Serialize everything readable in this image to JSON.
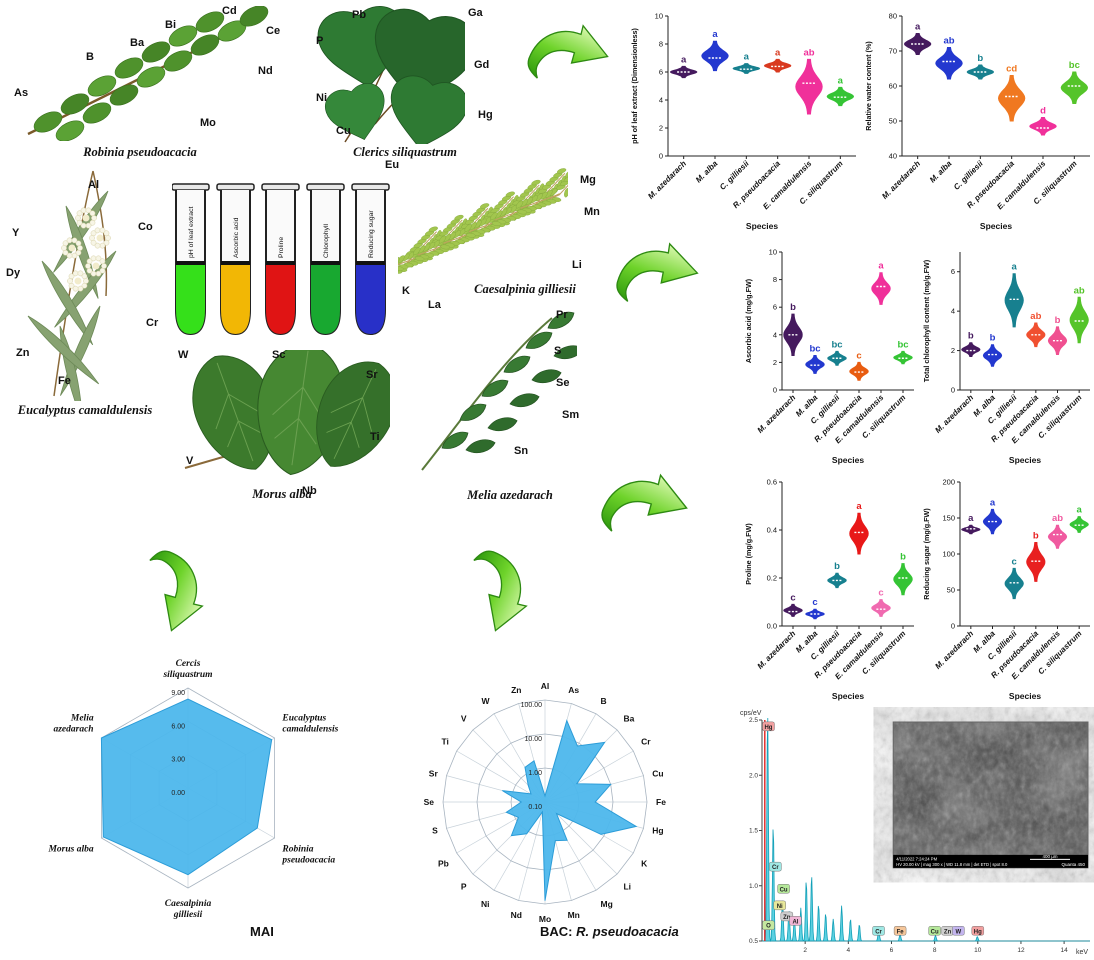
{
  "panels": {
    "robinia": {
      "caption": "Robinia pseudoacacia",
      "elements": [
        "As",
        "B",
        "Ba",
        "Bi",
        "Cd",
        "Ce",
        "Nd",
        "Mo"
      ]
    },
    "cercis": {
      "caption": "Clerics siliquastrum",
      "elements": [
        "P",
        "Pb",
        "Ga",
        "Gd",
        "Ni",
        "Cu",
        "Hg",
        "Eu"
      ]
    },
    "eucalyptus": {
      "caption": "Eucalyptus camaldulensis",
      "elements": [
        "Al",
        "Y",
        "Co",
        "Dy",
        "Cr",
        "Zn",
        "Fe"
      ]
    },
    "caesalpinia": {
      "caption": "Caesalpinia gilliesii",
      "elements": [
        "Mg",
        "Mn",
        "Li",
        "K",
        "La"
      ]
    },
    "morus": {
      "caption": "Morus alba",
      "elements": [
        "W",
        "Sc",
        "Sr",
        "Ti",
        "V",
        "Nb"
      ]
    },
    "melia": {
      "caption": "Melia azedarach",
      "elements": [
        "Pr",
        "S",
        "Se",
        "Sm",
        "Sn"
      ]
    },
    "tubes": {
      "labels": [
        "pH of leaf extract",
        "Ascorbic acid",
        "Proline",
        "Chlorophyll",
        "Reducing sugar"
      ],
      "colors": [
        "#35e01a",
        "#f2b705",
        "#e01414",
        "#18a830",
        "#2830c8"
      ]
    }
  },
  "chart_data": [
    {
      "type": "violin",
      "ylabel": "pH of leaf extract (Dimensionless)",
      "xlabel": "Species",
      "ylim": [
        0,
        10
      ],
      "yticks": [
        0,
        2,
        4,
        6,
        8,
        10
      ],
      "ydec": 0,
      "categories": [
        "M. azedarach",
        "M. alba",
        "C. gilliesii",
        "R. pseudoacacia",
        "E. camaldulensis",
        "C. siliquastrum"
      ],
      "series": [
        {
          "name": "M. azedarach",
          "min": 5.6,
          "median": 6.0,
          "max": 6.4,
          "letter": "a",
          "color": "#451a5e"
        },
        {
          "name": "M. alba",
          "min": 6.1,
          "median": 7.0,
          "max": 8.2,
          "letter": "a",
          "color": "#2338cf"
        },
        {
          "name": "C. gilliesii",
          "min": 5.9,
          "median": 6.2,
          "max": 6.6,
          "letter": "a",
          "color": "#17808f"
        },
        {
          "name": "R. pseudoacacia",
          "min": 6.0,
          "median": 6.4,
          "max": 6.9,
          "letter": "a",
          "color": "#d93a20"
        },
        {
          "name": "E. camaldulensis",
          "min": 3.0,
          "median": 5.2,
          "max": 6.9,
          "letter": "ab",
          "color": "#f0309a"
        },
        {
          "name": "C. siliquastrum",
          "min": 3.6,
          "median": 4.2,
          "max": 4.9,
          "letter": "a",
          "color": "#35c435"
        }
      ]
    },
    {
      "type": "violin",
      "ylabel": "Relative water content (%)",
      "xlabel": "Species",
      "ylim": [
        40,
        80
      ],
      "yticks": [
        40,
        50,
        60,
        70,
        80
      ],
      "ydec": 0,
      "categories": [
        "M. azedarach",
        "M. alba",
        "C. gilliesii",
        "R. pseudoacacia",
        "E. camaldulensis",
        "C. siliquastrum"
      ],
      "series": [
        {
          "name": "M. azedarach",
          "min": 69,
          "median": 72,
          "max": 75,
          "letter": "a",
          "color": "#451a5e"
        },
        {
          "name": "M. alba",
          "min": 62,
          "median": 67,
          "max": 71,
          "letter": "ab",
          "color": "#2338cf"
        },
        {
          "name": "C. gilliesii",
          "min": 62,
          "median": 64,
          "max": 66,
          "letter": "b",
          "color": "#17808f"
        },
        {
          "name": "R. pseudoacacia",
          "min": 50,
          "median": 57,
          "max": 63,
          "letter": "cd",
          "color": "#f07820"
        },
        {
          "name": "E. camaldulensis",
          "min": 46,
          "median": 48,
          "max": 51,
          "letter": "d",
          "color": "#f0309a"
        },
        {
          "name": "C. siliquastrum",
          "min": 55,
          "median": 60,
          "max": 64,
          "letter": "bc",
          "color": "#55c42a"
        }
      ]
    },
    {
      "type": "violin",
      "ylabel": "Ascorbic acid (mg/g.FW)",
      "xlabel": "Species",
      "ylim": [
        0,
        10
      ],
      "yticks": [
        0,
        2,
        4,
        6,
        8,
        10
      ],
      "ydec": 0,
      "categories": [
        "M. azedarach",
        "M. alba",
        "C. gilliesii",
        "R. pseudoacacia",
        "E. camaldulensis",
        "C. siliquastrum"
      ],
      "series": [
        {
          "name": "M. azedarach",
          "min": 2.5,
          "median": 4.0,
          "max": 5.5,
          "letter": "b",
          "color": "#451a5e"
        },
        {
          "name": "M. alba",
          "min": 1.2,
          "median": 1.8,
          "max": 2.5,
          "letter": "bc",
          "color": "#2338cf"
        },
        {
          "name": "C. gilliesii",
          "min": 1.8,
          "median": 2.3,
          "max": 2.8,
          "letter": "bc",
          "color": "#17808f"
        },
        {
          "name": "R. pseudoacacia",
          "min": 0.7,
          "median": 1.3,
          "max": 2.0,
          "letter": "c",
          "color": "#e85c10"
        },
        {
          "name": "E. camaldulensis",
          "min": 6.2,
          "median": 7.5,
          "max": 8.5,
          "letter": "a",
          "color": "#f0309a"
        },
        {
          "name": "C. siliquastrum",
          "min": 1.9,
          "median": 2.3,
          "max": 2.8,
          "letter": "bc",
          "color": "#35c435"
        }
      ]
    },
    {
      "type": "violin",
      "ylabel": "Total chlorophyll content (mg/g.FW)",
      "xlabel": "Species",
      "ylim": [
        0,
        7
      ],
      "yticks": [
        0,
        2,
        4,
        6
      ],
      "ydec": 0,
      "categories": [
        "M. azedarach",
        "M. alba",
        "C. gilliesii",
        "R. pseudoacacia",
        "E. camaldulensis",
        "C. siliquastrum"
      ],
      "series": [
        {
          "name": "M. azedarach",
          "min": 1.7,
          "median": 2.0,
          "max": 2.4,
          "letter": "b",
          "color": "#451a5e"
        },
        {
          "name": "M. alba",
          "min": 1.2,
          "median": 1.8,
          "max": 2.3,
          "letter": "b",
          "color": "#2338cf"
        },
        {
          "name": "C. gilliesii",
          "min": 3.2,
          "median": 4.6,
          "max": 5.9,
          "letter": "a",
          "color": "#17808f"
        },
        {
          "name": "R. pseudoacacia",
          "min": 2.2,
          "median": 2.8,
          "max": 3.4,
          "letter": "ab",
          "color": "#f05030"
        },
        {
          "name": "E. camaldulensis",
          "min": 1.8,
          "median": 2.5,
          "max": 3.2,
          "letter": "b",
          "color": "#f05090"
        },
        {
          "name": "C. siliquastrum",
          "min": 2.4,
          "median": 3.5,
          "max": 4.7,
          "letter": "ab",
          "color": "#55c42a"
        }
      ]
    },
    {
      "type": "violin",
      "ylabel": "Proline (mg/g.FW)",
      "xlabel": "Species",
      "ylim": [
        0,
        0.6
      ],
      "yticks": [
        0,
        0.2,
        0.4,
        0.6
      ],
      "ydec": 1,
      "categories": [
        "M. azedarach",
        "M. alba",
        "C. gilliesii",
        "R. pseudoacacia",
        "E. camaldulensis",
        "C. siliquastrum"
      ],
      "series": [
        {
          "name": "M. azedarach",
          "min": 0.04,
          "median": 0.06,
          "max": 0.09,
          "letter": "c",
          "color": "#451a5e"
        },
        {
          "name": "M. alba",
          "min": 0.03,
          "median": 0.05,
          "max": 0.07,
          "letter": "c",
          "color": "#2338cf"
        },
        {
          "name": "C. gilliesii",
          "min": 0.16,
          "median": 0.19,
          "max": 0.22,
          "letter": "b",
          "color": "#17808f"
        },
        {
          "name": "R. pseudoacacia",
          "min": 0.3,
          "median": 0.39,
          "max": 0.47,
          "letter": "a",
          "color": "#e81818"
        },
        {
          "name": "E. camaldulensis",
          "min": 0.04,
          "median": 0.07,
          "max": 0.11,
          "letter": "c",
          "color": "#f06ab0"
        },
        {
          "name": "C. siliquastrum",
          "min": 0.13,
          "median": 0.2,
          "max": 0.26,
          "letter": "b",
          "color": "#35c435"
        }
      ]
    },
    {
      "type": "violin",
      "ylabel": "Reducing sugar (mg/g.FW)",
      "xlabel": "Species",
      "ylim": [
        0,
        200
      ],
      "yticks": [
        0,
        50,
        100,
        150,
        200
      ],
      "ydec": 0,
      "categories": [
        "M. azedarach",
        "M. alba",
        "C. gilliesii",
        "R. pseudoacacia",
        "E. camaldulensis",
        "C. siliquastrum"
      ],
      "series": [
        {
          "name": "M. azedarach",
          "min": 128,
          "median": 135,
          "max": 140,
          "letter": "a",
          "color": "#451a5e"
        },
        {
          "name": "M. alba",
          "min": 128,
          "median": 145,
          "max": 162,
          "letter": "a",
          "color": "#2338cf"
        },
        {
          "name": "C. gilliesii",
          "min": 38,
          "median": 60,
          "max": 80,
          "letter": "c",
          "color": "#17808f"
        },
        {
          "name": "R. pseudoacacia",
          "min": 62,
          "median": 90,
          "max": 116,
          "letter": "b",
          "color": "#e82020"
        },
        {
          "name": "E. camaldulensis",
          "min": 108,
          "median": 127,
          "max": 140,
          "letter": "ab",
          "color": "#f05aa0"
        },
        {
          "name": "C. siliquastrum",
          "min": 130,
          "median": 140,
          "max": 152,
          "letter": "a",
          "color": "#35c435"
        }
      ]
    },
    {
      "type": "radar",
      "title": "MAI",
      "scale": "linear",
      "min": 0,
      "max": 9,
      "rings": [
        0,
        3,
        6,
        9
      ],
      "ring_labels": [
        "0.00",
        "3.00",
        "6.00",
        "9.00"
      ],
      "categories": [
        "Cercis siliquastrum",
        "Eucalyptus camaldulensis",
        "Robinia pseudoacacia",
        "Caesalpinia gilliesii",
        "Morus alba",
        "Melia azedarach"
      ],
      "values": [
        8.0,
        8.7,
        7.2,
        7.8,
        8.8,
        9.0
      ],
      "fill": "#4db7ec"
    },
    {
      "type": "radar",
      "title_prefix": "BAC: ",
      "title_italic": "R. pseudoacacia",
      "scale": "log",
      "min": 0.1,
      "max": 100,
      "rings": [
        0.1,
        1,
        10,
        100
      ],
      "ring_labels": [
        "0.10",
        "1.00",
        "10.00",
        "100.00"
      ],
      "categories": [
        "Al",
        "As",
        "B",
        "Ba",
        "Cr",
        "Cu",
        "Fe",
        "Hg",
        "K",
        "Li",
        "Mg",
        "Mn",
        "Mo",
        "Nd",
        "Ni",
        "P",
        "Pb",
        "S",
        "Se",
        "Sr",
        "Ti",
        "V",
        "W",
        "Zn"
      ],
      "values": [
        0.15,
        30,
        8,
        30,
        1.2,
        10,
        3,
        60,
        8,
        0.3,
        2,
        1.5,
        80,
        0.2,
        1.2,
        2.5,
        0.8,
        1.5,
        0.5,
        2,
        0.3,
        0.5,
        1.5,
        1.8
      ],
      "fill": "#4db7ec"
    },
    {
      "type": "eds",
      "ylabel": "cps/eV",
      "xlabel": "keV",
      "xlim": [
        0,
        15.2
      ],
      "xticks": [
        2,
        4,
        6,
        8,
        10,
        12,
        14
      ],
      "ylim": [
        0.5,
        2.5
      ],
      "yticks": [
        "0.5",
        "1.0",
        "1.5",
        "2.0",
        "2.5"
      ],
      "baseline": 0.5,
      "curve_color": "#3fc9dc",
      "peaks": [
        {
          "x": 0.26,
          "h": 2.1
        },
        {
          "x": 0.52,
          "h": 1.05
        },
        {
          "x": 0.95,
          "h": 0.38
        },
        {
          "x": 1.25,
          "h": 0.28
        },
        {
          "x": 1.5,
          "h": 0.2
        },
        {
          "x": 1.8,
          "h": 0.3
        },
        {
          "x": 2.05,
          "h": 0.55
        },
        {
          "x": 2.3,
          "h": 0.6
        },
        {
          "x": 2.62,
          "h": 0.33
        },
        {
          "x": 2.95,
          "h": 0.25
        },
        {
          "x": 3.3,
          "h": 0.2
        },
        {
          "x": 3.69,
          "h": 0.32
        },
        {
          "x": 4.1,
          "h": 0.2
        },
        {
          "x": 4.51,
          "h": 0.15
        },
        {
          "x": 5.41,
          "h": 0.1
        },
        {
          "x": 6.4,
          "h": 0.06
        },
        {
          "x": 8.04,
          "h": 0.05
        },
        {
          "x": 9.98,
          "h": 0.04
        }
      ],
      "labels": [
        {
          "el": "Hg",
          "x": 0.3,
          "y": 2.42,
          "color": "#f2a0a0"
        },
        {
          "el": "Cr",
          "x": 0.62,
          "y": 1.15,
          "color": "#9fe8e4"
        },
        {
          "el": "Cu",
          "x": 1.0,
          "y": 0.95,
          "color": "#b5e89a"
        },
        {
          "el": "Ni",
          "x": 0.82,
          "y": 0.8,
          "color": "#e8e89a"
        },
        {
          "el": "Zn",
          "x": 1.15,
          "y": 0.7,
          "color": "#cfcfcf"
        },
        {
          "el": "Al",
          "x": 1.55,
          "y": 0.66,
          "color": "#f0b5d5"
        },
        {
          "el": "O",
          "x": 0.3,
          "y": 0.62,
          "color": "#c5e8a0"
        }
      ],
      "bottom_labels": [
        {
          "el": "Cr",
          "x": 5.4,
          "color": "#9fe8e4"
        },
        {
          "el": "Fe",
          "x": 6.4,
          "color": "#f5c69a"
        },
        {
          "el": "Cu",
          "x": 8.0,
          "color": "#b5e89a"
        },
        {
          "el": "Zn",
          "x": 8.6,
          "color": "#cfcfcf"
        },
        {
          "el": "W",
          "x": 9.1,
          "color": "#c3b5ee"
        },
        {
          "el": "Hg",
          "x": 10.0,
          "color": "#f2a0a0"
        }
      ],
      "inset": {
        "bar_left": "4/11/2022  7:24:24 PM",
        "bar_mid": "HV 20.00 kV | mag 300 x | WD 11.8 mm | det ETD | spot 8.0",
        "bar_right": "Quanta 450",
        "scale_label": "400 µm"
      }
    }
  ]
}
